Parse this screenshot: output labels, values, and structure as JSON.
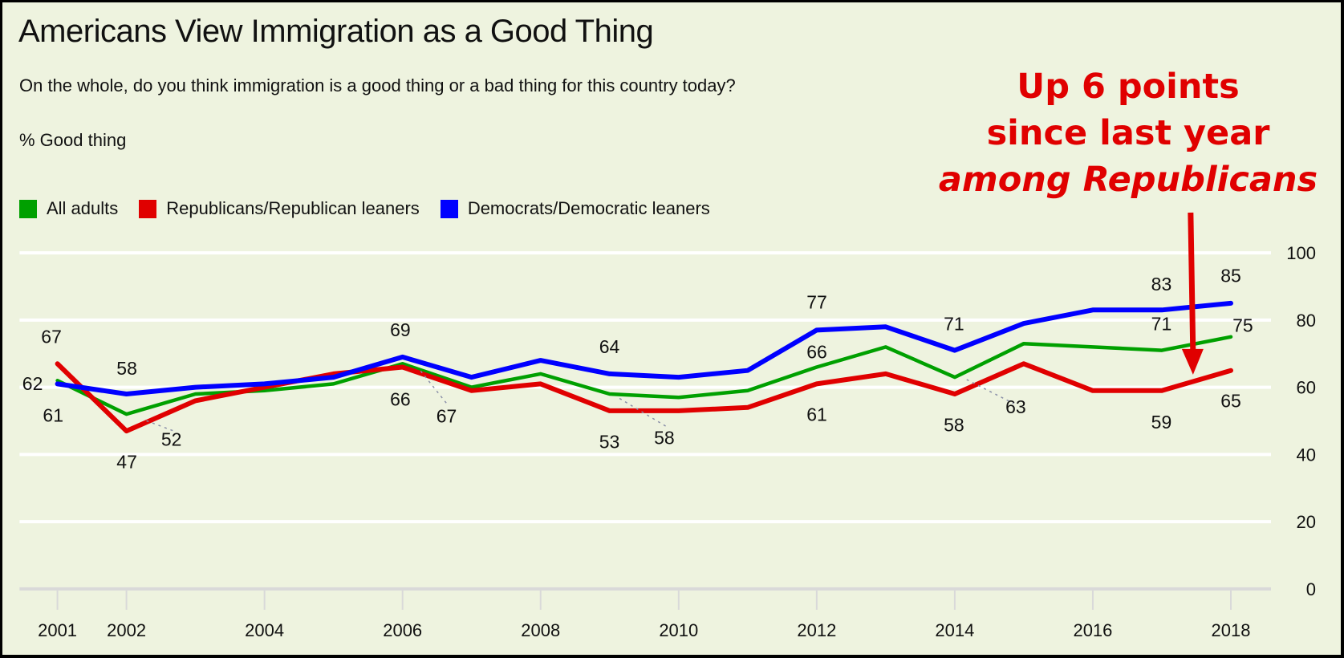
{
  "chart_data": {
    "type": "line",
    "title": "Americans View Immigration as a Good Thing",
    "subtitle": "On the whole, do you think immigration is a good thing or a bad thing for this country today?",
    "ylabel": "% Good thing",
    "xlabel": "",
    "ylim": [
      0,
      100
    ],
    "yticks": [
      0,
      20,
      40,
      60,
      80,
      100
    ],
    "xlim": [
      2001,
      2018
    ],
    "xticks": [
      2001,
      2002,
      2004,
      2006,
      2008,
      2010,
      2012,
      2014,
      2016,
      2018
    ],
    "grid": true,
    "legend_position": "top-left",
    "x": [
      2001,
      2002,
      2003,
      2004,
      2005,
      2006,
      2007,
      2008,
      2009,
      2010,
      2011,
      2012,
      2013,
      2014,
      2015,
      2016,
      2017,
      2018
    ],
    "series": [
      {
        "name": "All adults",
        "color": "#00a000",
        "values": [
          62,
          52,
          58,
          59,
          61,
          67,
          60,
          64,
          58,
          57,
          59,
          66,
          72,
          63,
          73,
          72,
          71,
          75
        ]
      },
      {
        "name": "Republicans/Republican leaners",
        "color": "#e00000",
        "values": [
          67,
          47,
          56,
          60,
          64,
          66,
          59,
          61,
          53,
          53,
          54,
          61,
          64,
          58,
          67,
          59,
          59,
          65
        ]
      },
      {
        "name": "Democrats/Democratic leaners",
        "color": "#0000ff",
        "values": [
          61,
          58,
          60,
          61,
          63,
          69,
          63,
          68,
          64,
          63,
          65,
          77,
          78,
          71,
          79,
          83,
          83,
          85
        ]
      }
    ],
    "data_labels": [
      {
        "text": "67",
        "series": "Republicans/Republican leaners",
        "x": 2001
      },
      {
        "text": "62",
        "series": "All adults",
        "x": 2001
      },
      {
        "text": "61",
        "series": "Democrats/Democratic leaners",
        "x": 2001
      },
      {
        "text": "58",
        "series": "Democrats/Democratic leaners",
        "x": 2002
      },
      {
        "text": "52",
        "series": "All adults",
        "x": 2002
      },
      {
        "text": "47",
        "series": "Republicans/Republican leaners",
        "x": 2002
      },
      {
        "text": "69",
        "series": "Democrats/Democratic leaners",
        "x": 2006
      },
      {
        "text": "66",
        "series": "Republicans/Republican leaners",
        "x": 2006
      },
      {
        "text": "67",
        "series": "All adults",
        "x": 2006
      },
      {
        "text": "64",
        "series": "Democrats/Democratic leaners",
        "x": 2009
      },
      {
        "text": "53",
        "series": "Republicans/Republican leaners",
        "x": 2009
      },
      {
        "text": "58",
        "series": "All adults",
        "x": 2009
      },
      {
        "text": "77",
        "series": "Democrats/Democratic leaners",
        "x": 2012
      },
      {
        "text": "66",
        "series": "All adults",
        "x": 2012
      },
      {
        "text": "61",
        "series": "Republicans/Republican leaners",
        "x": 2012
      },
      {
        "text": "71",
        "series": "Democrats/Democratic leaners",
        "x": 2014
      },
      {
        "text": "58",
        "series": "Republicans/Republican leaners",
        "x": 2014
      },
      {
        "text": "63",
        "series": "All adults",
        "x": 2014
      },
      {
        "text": "83",
        "series": "Democrats/Democratic leaners",
        "x": 2017
      },
      {
        "text": "71",
        "series": "All adults",
        "x": 2017
      },
      {
        "text": "59",
        "series": "Republicans/Republican leaners",
        "x": 2017
      },
      {
        "text": "85",
        "series": "Democrats/Democratic leaners",
        "x": 2018
      },
      {
        "text": "75",
        "series": "All adults",
        "x": 2018
      },
      {
        "text": "65",
        "series": "Republicans/Republican leaners",
        "x": 2018
      }
    ],
    "annotation": {
      "lines": [
        "Up 6 points",
        "since last year",
        "among Republicans"
      ],
      "color": "#e00000",
      "points_to": {
        "series": "Republicans/Republican leaners",
        "between": [
          2017,
          2018
        ]
      }
    }
  },
  "colors": {
    "background": "#eef3df",
    "gridline": "#ffffff",
    "axis": "#d9d9d9"
  }
}
